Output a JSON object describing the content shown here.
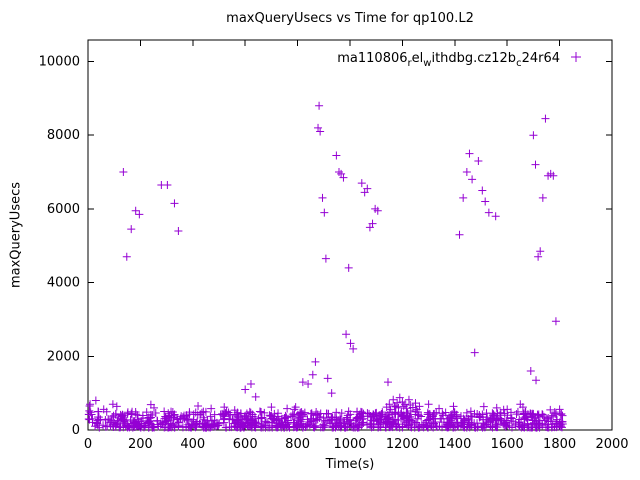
{
  "title": "maxQueryUsecs vs Time for qp100.L2",
  "colors": {
    "marker": "#9400d3",
    "axis": "#000000",
    "background": "#ffffff"
  },
  "legend": {
    "plain": "ma110806_rel_withdbg.cz12b_c24r64",
    "segments": [
      {
        "text": "ma110806"
      },
      {
        "text": "r",
        "sub": true
      },
      {
        "text": "el"
      },
      {
        "text": "w",
        "sub": true
      },
      {
        "text": "ithdbg.cz12b"
      },
      {
        "text": "c",
        "sub": true
      },
      {
        "text": "24r64"
      }
    ]
  },
  "chart_data": {
    "type": "scatter",
    "title": "maxQueryUsecs vs Time for qp100.L2",
    "xlabel": "Time(s)",
    "ylabel": "maxQueryUsecs",
    "xlim": [
      0,
      2000
    ],
    "ylim": [
      0,
      10000
    ],
    "x_ticks": [
      0,
      200,
      400,
      600,
      800,
      1000,
      1200,
      1400,
      1600,
      1800,
      2000
    ],
    "y_ticks": [
      0,
      2000,
      4000,
      6000,
      8000,
      10000
    ],
    "grid": false,
    "legend_position": "top-right-inside",
    "series": [
      {
        "name": "ma110806_rel_withdbg.cz12b_c24r64",
        "marker": "plus",
        "color": "#9400d3",
        "points": [
          [
            3,
            300
          ],
          [
            4,
            420
          ],
          [
            5,
            520
          ],
          [
            6,
            650
          ],
          [
            8,
            700
          ],
          [
            10,
            480
          ],
          [
            30,
            800
          ],
          [
            60,
            560
          ],
          [
            95,
            700
          ],
          [
            110,
            640
          ],
          [
            135,
            7000
          ],
          [
            148,
            4700
          ],
          [
            165,
            5450
          ],
          [
            182,
            5950
          ],
          [
            196,
            5850
          ],
          [
            240,
            690
          ],
          [
            252,
            600
          ],
          [
            280,
            6650
          ],
          [
            303,
            6650
          ],
          [
            330,
            6150
          ],
          [
            345,
            5400
          ],
          [
            420,
            650
          ],
          [
            470,
            580
          ],
          [
            520,
            620
          ],
          [
            560,
            540
          ],
          [
            600,
            1100
          ],
          [
            622,
            1250
          ],
          [
            640,
            900
          ],
          [
            700,
            620
          ],
          [
            760,
            580
          ],
          [
            820,
            1300
          ],
          [
            840,
            1250
          ],
          [
            858,
            1500
          ],
          [
            868,
            1850
          ],
          [
            878,
            8200
          ],
          [
            882,
            8800
          ],
          [
            886,
            8100
          ],
          [
            895,
            6300
          ],
          [
            902,
            5900
          ],
          [
            908,
            4650
          ],
          [
            915,
            1400
          ],
          [
            930,
            1000
          ],
          [
            948,
            7450
          ],
          [
            958,
            7000
          ],
          [
            966,
            6950
          ],
          [
            975,
            6850
          ],
          [
            985,
            2600
          ],
          [
            995,
            4400
          ],
          [
            1002,
            2350
          ],
          [
            1012,
            2200
          ],
          [
            1045,
            6700
          ],
          [
            1056,
            6450
          ],
          [
            1066,
            6550
          ],
          [
            1076,
            5500
          ],
          [
            1086,
            5600
          ],
          [
            1096,
            6000
          ],
          [
            1106,
            5950
          ],
          [
            1140,
            620
          ],
          [
            1145,
            1300
          ],
          [
            1150,
            700
          ],
          [
            1155,
            560
          ],
          [
            1165,
            820
          ],
          [
            1170,
            650
          ],
          [
            1180,
            740
          ],
          [
            1185,
            600
          ],
          [
            1190,
            880
          ],
          [
            1200,
            760
          ],
          [
            1205,
            640
          ],
          [
            1210,
            700
          ],
          [
            1215,
            590
          ],
          [
            1225,
            820
          ],
          [
            1230,
            680
          ],
          [
            1240,
            610
          ],
          [
            1250,
            730
          ],
          [
            1255,
            560
          ],
          [
            1265,
            640
          ],
          [
            1300,
            700
          ],
          [
            1340,
            580
          ],
          [
            1395,
            640
          ],
          [
            1418,
            5300
          ],
          [
            1432,
            6300
          ],
          [
            1446,
            7000
          ],
          [
            1456,
            7500
          ],
          [
            1466,
            6800
          ],
          [
            1476,
            2100
          ],
          [
            1490,
            7300
          ],
          [
            1505,
            6500
          ],
          [
            1516,
            6200
          ],
          [
            1530,
            5900
          ],
          [
            1556,
            5800
          ],
          [
            1560,
            600
          ],
          [
            1600,
            560
          ],
          [
            1650,
            700
          ],
          [
            1660,
            620
          ],
          [
            1690,
            1600
          ],
          [
            1700,
            8000
          ],
          [
            1708,
            7200
          ],
          [
            1710,
            1350
          ],
          [
            1718,
            4700
          ],
          [
            1726,
            4850
          ],
          [
            1736,
            6300
          ],
          [
            1746,
            8450
          ],
          [
            1756,
            6900
          ],
          [
            1766,
            6950
          ],
          [
            1776,
            6900
          ],
          [
            1786,
            2950
          ],
          [
            1800,
            560
          ]
        ],
        "noise_band": {
          "description": "dense noise floor of samples along the bottom of the plot",
          "count": 1000,
          "x_range": [
            2,
            1812
          ],
          "y_base": 65,
          "y_span": 440,
          "exponent": 1.7,
          "spike_chance": 0.05,
          "spike_extra": 260,
          "seed": 1234
        }
      }
    ]
  }
}
